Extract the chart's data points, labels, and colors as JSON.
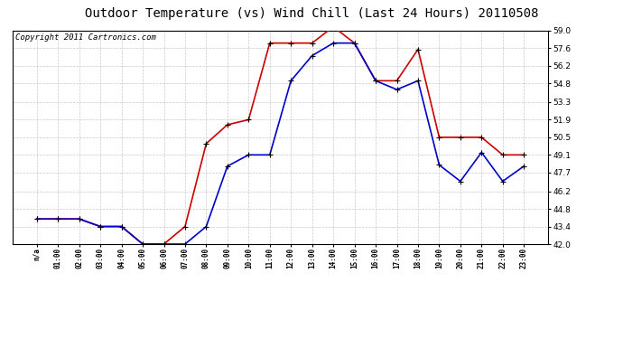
{
  "title": "Outdoor Temperature (vs) Wind Chill (Last 24 Hours) 20110508",
  "copyright": "Copyright 2011 Cartronics.com",
  "x_labels": [
    "n/a",
    "01:00",
    "02:00",
    "03:00",
    "04:00",
    "05:00",
    "06:00",
    "07:00",
    "08:00",
    "09:00",
    "10:00",
    "11:00",
    "12:00",
    "13:00",
    "14:00",
    "15:00",
    "16:00",
    "17:00",
    "18:00",
    "19:00",
    "20:00",
    "21:00",
    "22:00",
    "23:00"
  ],
  "temp_red": [
    44.0,
    44.0,
    44.0,
    43.4,
    43.4,
    42.0,
    42.0,
    43.4,
    50.0,
    51.5,
    51.9,
    58.0,
    58.0,
    58.0,
    59.3,
    58.0,
    55.0,
    55.0,
    57.5,
    50.5,
    50.5,
    50.5,
    49.1,
    49.1
  ],
  "wind_blue": [
    44.0,
    44.0,
    44.0,
    43.4,
    43.4,
    42.0,
    42.0,
    42.0,
    43.4,
    48.2,
    49.1,
    49.1,
    55.0,
    57.0,
    58.0,
    58.0,
    55.0,
    54.3,
    55.0,
    48.3,
    47.0,
    49.3,
    47.0,
    48.2
  ],
  "ylim": [
    42.0,
    59.0
  ],
  "yticks": [
    42.0,
    43.4,
    44.8,
    46.2,
    47.7,
    49.1,
    50.5,
    51.9,
    53.3,
    54.8,
    56.2,
    57.6,
    59.0
  ],
  "red_color": "#cc0000",
  "blue_color": "#0000cc",
  "bg_color": "#ffffff",
  "grid_color": "#bbbbbb",
  "title_fontsize": 10,
  "copyright_fontsize": 6.5
}
